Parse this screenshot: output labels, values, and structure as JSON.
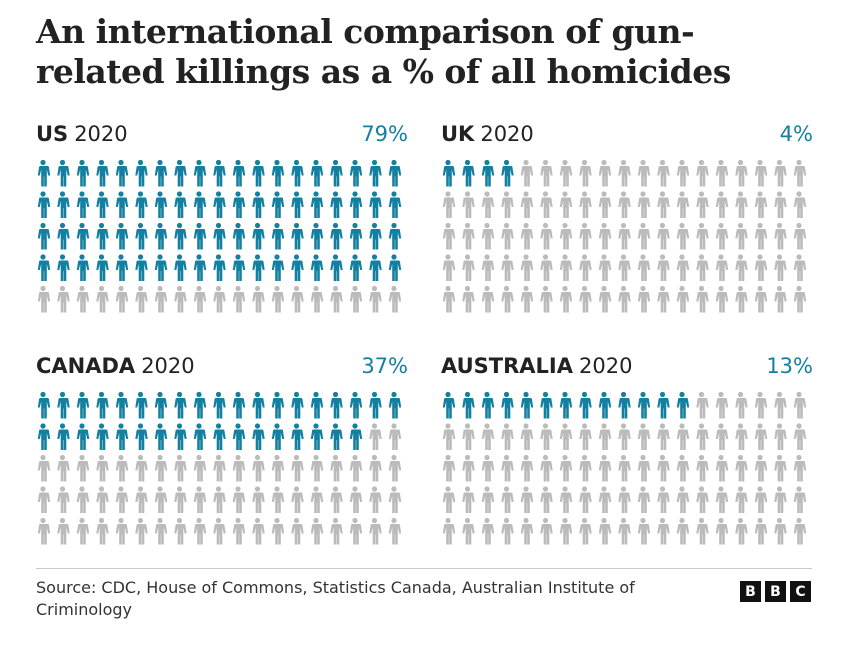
{
  "title": "An international comparison of gun-related killings as a % of all homicides",
  "chart_data": [
    {
      "type": "pictogram",
      "country": "US",
      "year": "2020",
      "label": "79%",
      "value": 79,
      "total": 100
    },
    {
      "type": "pictogram",
      "country": "UK",
      "year": "2020",
      "label": "4%",
      "value": 4,
      "total": 100
    },
    {
      "type": "pictogram",
      "country": "CANADA",
      "year": "2020",
      "label": "37%",
      "value": 37,
      "total": 100
    },
    {
      "type": "pictogram",
      "country": "AUSTRALIA",
      "year": "2020",
      "label": "13%",
      "value": 13,
      "total": 100
    }
  ],
  "colors": {
    "highlight": "#1380A1",
    "base": "#BBBBBB"
  },
  "source": "Source: CDC, House of Commons, Statistics Canada, Australian Institute of Criminology",
  "logo": [
    "B",
    "B",
    "C"
  ]
}
